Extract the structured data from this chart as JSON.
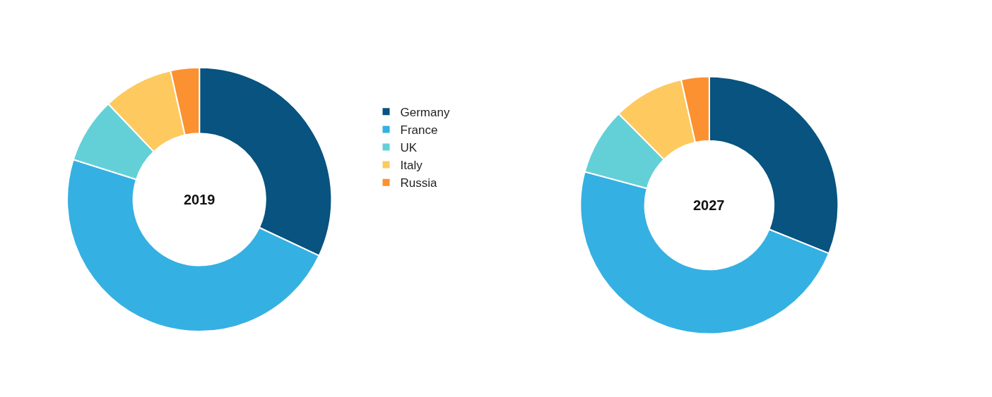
{
  "chart_data": {
    "type": "donut",
    "categories": [
      "Germany",
      "France",
      "UK",
      "Italy",
      "Russia"
    ],
    "colors": [
      "#08537f",
      "#35b0e2",
      "#63d0d8",
      "#fec95f",
      "#fb9130"
    ],
    "legend": "top",
    "series": [
      {
        "name": "2019",
        "values": [
          32,
          47.9,
          8,
          8.6,
          3.5
        ]
      },
      {
        "name": "2027",
        "values": [
          31.1,
          48.1,
          8.4,
          8.9,
          3.5
        ]
      }
    ]
  }
}
